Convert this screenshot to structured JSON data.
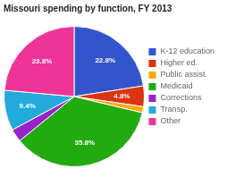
{
  "chart_data": {
    "type": "pie",
    "title": "Missouri spending by function, FY 2013",
    "categories": [
      "K-12 education",
      "Higher ed.",
      "Public assist.",
      "Medicaid",
      "Corrections",
      "Transp.",
      "Other"
    ],
    "values": [
      22.8,
      4.8,
      1.4,
      35.8,
      3.0,
      9.4,
      23.8
    ],
    "value_labels": [
      "22.8%",
      "4.8%",
      null,
      "35.8%",
      null,
      "9.4%",
      "23.8%"
    ],
    "colors": [
      "#3355cc",
      "#dd3311",
      "#ffaa00",
      "#22aa11",
      "#9922cc",
      "#22aadd",
      "#ee3399"
    ],
    "data_labels": true,
    "legend": "right"
  }
}
